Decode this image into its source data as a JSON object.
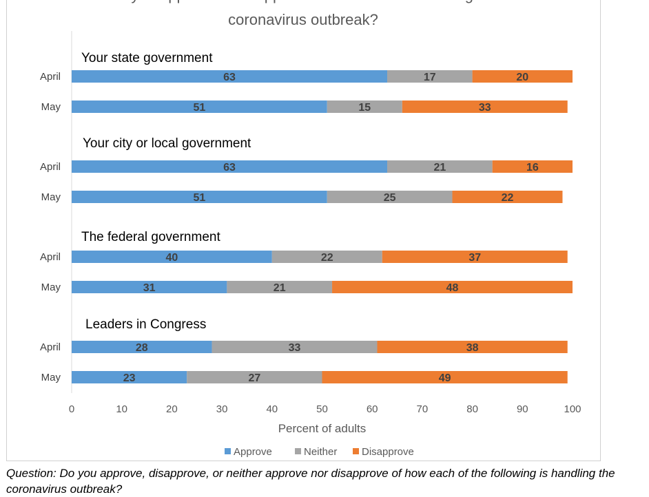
{
  "title_lines": [
    "Do you approve or disapprove of how each is handling the",
    "coronavirus outbreak?"
  ],
  "footnote": "Question: Do you approve, disapprove, or neither approve nor disapprove of how each of the following is handling the coronavirus outbreak?",
  "chart_data": {
    "type": "bar",
    "orientation": "horizontal",
    "stacked": true,
    "xlabel": "Percent of adults",
    "xlim": [
      0,
      100
    ],
    "xticks": [
      0,
      10,
      20,
      30,
      40,
      50,
      60,
      70,
      80,
      90,
      100
    ],
    "legend_position": "bottom",
    "series": [
      {
        "name": "Approve",
        "color": "#5b9bd5"
      },
      {
        "name": "Neither",
        "color": "#a5a5a5"
      },
      {
        "name": "Disapprove",
        "color": "#ed7d31"
      }
    ],
    "groups": [
      {
        "label": "Your state government",
        "rows": [
          {
            "label": "April",
            "values": [
              63,
              17,
              20
            ]
          },
          {
            "label": "May",
            "values": [
              51,
              15,
              33
            ]
          }
        ]
      },
      {
        "label": "Your city or local government",
        "rows": [
          {
            "label": "April",
            "values": [
              63,
              21,
              16
            ]
          },
          {
            "label": "May",
            "values": [
              51,
              25,
              22
            ]
          }
        ]
      },
      {
        "label": "The federal government",
        "rows": [
          {
            "label": "April",
            "values": [
              40,
              22,
              37
            ]
          },
          {
            "label": "May",
            "values": [
              31,
              21,
              48
            ]
          }
        ]
      },
      {
        "label": "Leaders in Congress",
        "rows": [
          {
            "label": "April",
            "values": [
              28,
              33,
              38
            ]
          },
          {
            "label": "May",
            "values": [
              23,
              27,
              49
            ]
          }
        ]
      }
    ]
  }
}
